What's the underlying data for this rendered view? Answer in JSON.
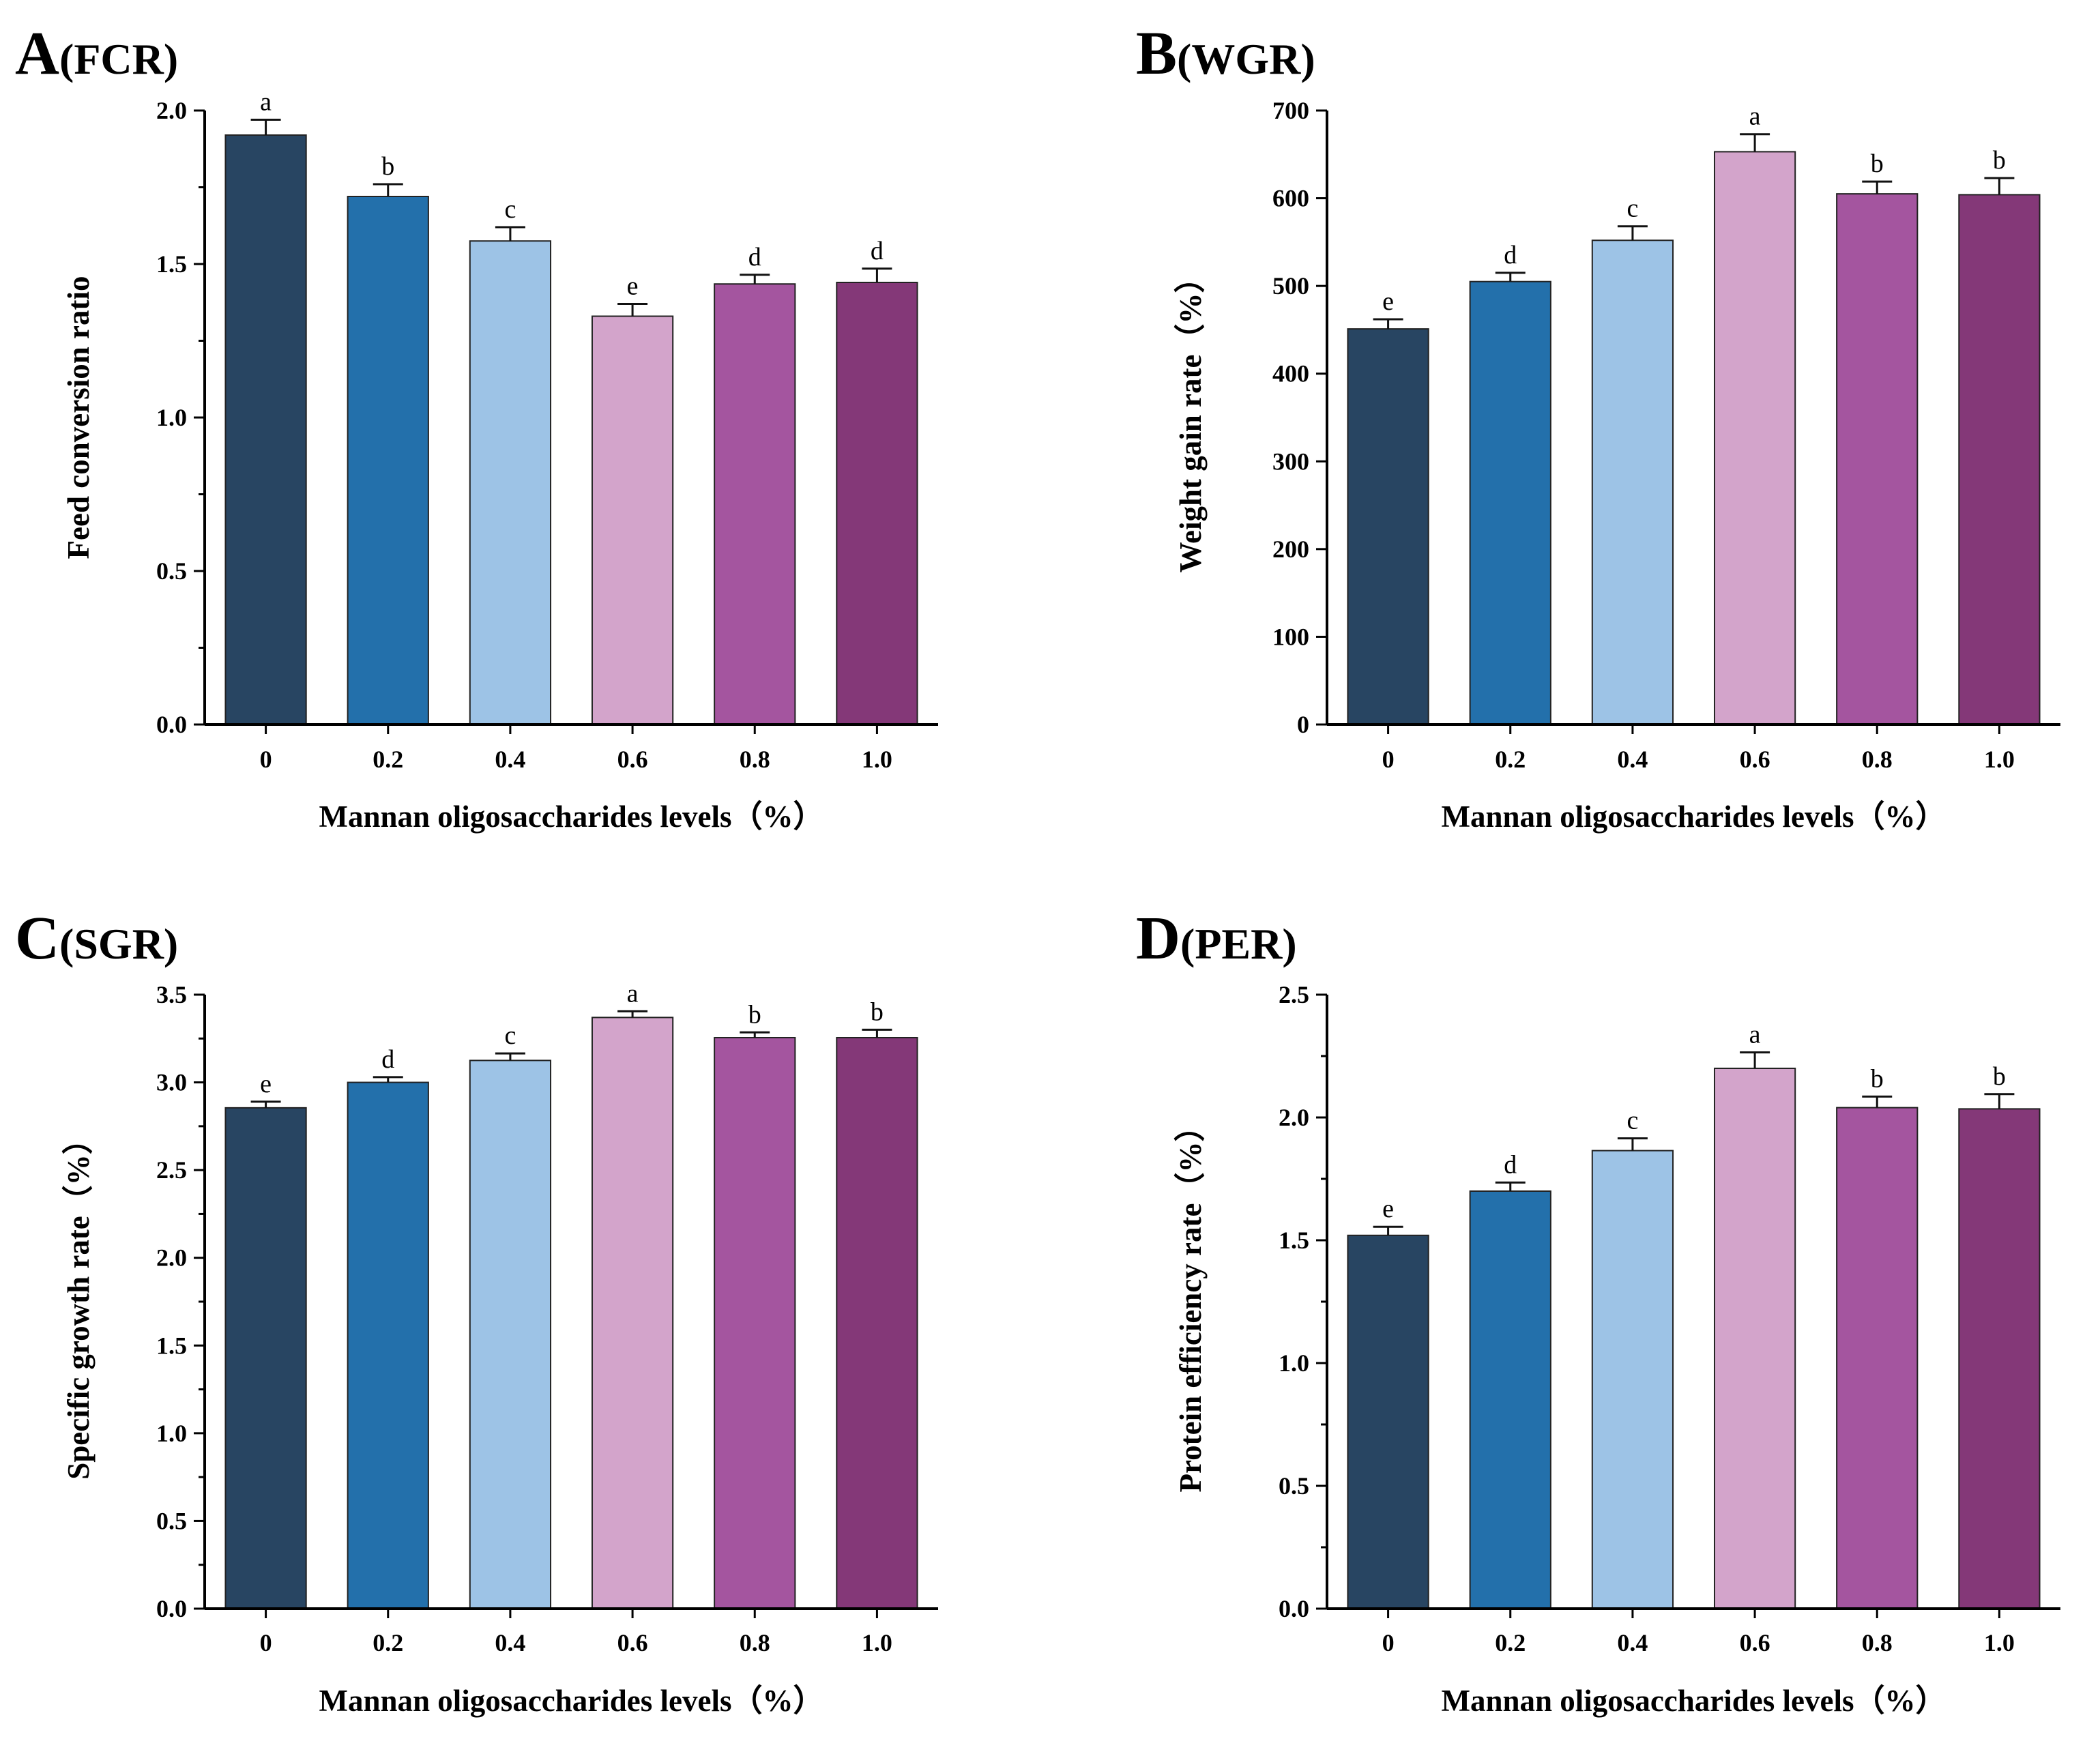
{
  "chart_data": [
    {
      "type": "bar",
      "panel": "A",
      "tag": "(FCR)",
      "categories": [
        "0",
        "0.2",
        "0.4",
        "0.6",
        "0.8",
        "1.0"
      ],
      "values": [
        1.92,
        1.72,
        1.575,
        1.33,
        1.435,
        1.44
      ],
      "errors": [
        0.05,
        0.04,
        0.045,
        0.04,
        0.03,
        0.045
      ],
      "letters": [
        "a",
        "b",
        "c",
        "e",
        "d",
        "d"
      ],
      "xlabel": "Mannan oligosaccharides levels（%）",
      "ylabel": "Feed conversion ratio",
      "ylim": [
        0,
        2.0
      ],
      "yticks": [
        "0.0",
        "0.5",
        "1.0",
        "1.5",
        "2.0"
      ],
      "minor_ticks": true,
      "colors": [
        "#284562",
        "#2370ab",
        "#9dc3e6",
        "#d3a4cb",
        "#a4559f",
        "#843878"
      ]
    },
    {
      "type": "bar",
      "panel": "B",
      "tag": "(WGR)",
      "categories": [
        "0",
        "0.2",
        "0.4",
        "0.6",
        "0.8",
        "1.0"
      ],
      "values": [
        451,
        505,
        552,
        653,
        605,
        604
      ],
      "errors": [
        11,
        10,
        16,
        20,
        14,
        19
      ],
      "letters": [
        "e",
        "d",
        "c",
        "a",
        "b",
        "b"
      ],
      "xlabel": "Mannan oligosaccharides levels（%）",
      "ylabel": "Weight gain rate（%）",
      "ylim": [
        0,
        700
      ],
      "yticks": [
        "0",
        "100",
        "200",
        "300",
        "400",
        "500",
        "600",
        "700"
      ],
      "minor_ticks": false,
      "colors": [
        "#284562",
        "#2370ab",
        "#9dc3e6",
        "#d3a4cb",
        "#a4559f",
        "#843878"
      ]
    },
    {
      "type": "bar",
      "panel": "C",
      "tag": "(SGR)",
      "categories": [
        "0",
        "0.2",
        "0.4",
        "0.6",
        "0.8",
        "1.0"
      ],
      "values": [
        2.855,
        3.0,
        3.125,
        3.37,
        3.255,
        3.255
      ],
      "errors": [
        0.035,
        0.03,
        0.04,
        0.035,
        0.03,
        0.045
      ],
      "letters": [
        "e",
        "d",
        "c",
        "a",
        "b",
        "b"
      ],
      "xlabel": "Mannan oligosaccharides levels（%）",
      "ylabel": "Specific growth rate（%）",
      "ylim": [
        0,
        3.5
      ],
      "yticks": [
        "0.0",
        "0.5",
        "1.0",
        "1.5",
        "2.0",
        "2.5",
        "3.0",
        "3.5"
      ],
      "minor_ticks": true,
      "colors": [
        "#284562",
        "#2370ab",
        "#9dc3e6",
        "#d3a4cb",
        "#a4559f",
        "#843878"
      ]
    },
    {
      "type": "bar",
      "panel": "D",
      "tag": "(PER)",
      "categories": [
        "0",
        "0.2",
        "0.4",
        "0.6",
        "0.8",
        "1.0"
      ],
      "values": [
        1.52,
        1.7,
        1.865,
        2.2,
        2.04,
        2.035
      ],
      "errors": [
        0.035,
        0.035,
        0.05,
        0.065,
        0.045,
        0.06
      ],
      "letters": [
        "e",
        "d",
        "c",
        "a",
        "b",
        "b"
      ],
      "xlabel": "Mannan oligosaccharides levels（%）",
      "ylabel": "Protein efficiency rate（%）",
      "ylim": [
        0,
        2.5
      ],
      "yticks": [
        "0.0",
        "0.5",
        "1.0",
        "1.5",
        "2.0",
        "2.5"
      ],
      "minor_ticks": true,
      "colors": [
        "#284562",
        "#2370ab",
        "#9dc3e6",
        "#d3a4cb",
        "#a4559f",
        "#843878"
      ]
    }
  ]
}
